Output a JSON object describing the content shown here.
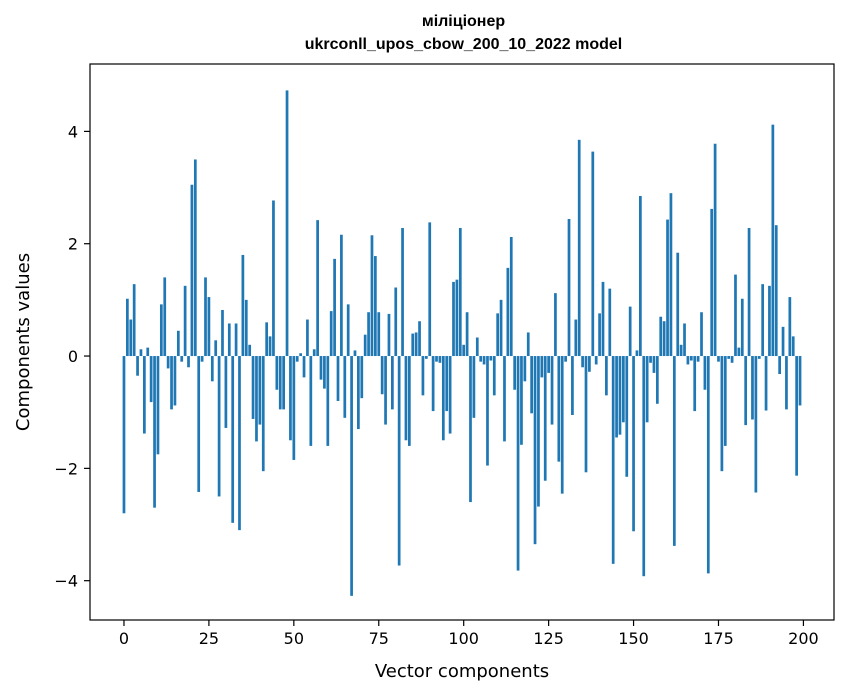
{
  "chart_data": {
    "type": "bar",
    "title": [
      "міліціонер",
      "ukrconll_upos_cbow_200_10_2022 model"
    ],
    "xlabel": "Vector components",
    "ylabel": "Components values",
    "xlim": [
      -10,
      209
    ],
    "ylim": [
      -4.7,
      5.2
    ],
    "xticks": [
      0,
      25,
      50,
      75,
      100,
      125,
      150,
      175,
      200
    ],
    "xtick_labels": [
      "0",
      "25",
      "50",
      "75",
      "100",
      "125",
      "150",
      "175",
      "200"
    ],
    "yticks": [
      -4,
      -2,
      0,
      2,
      4
    ],
    "ytick_labels": [
      "−4",
      "−2",
      "0",
      "2",
      "4"
    ],
    "grid": false,
    "bar_color": "#1f77b4",
    "x": [
      0,
      1,
      2,
      3,
      4,
      5,
      6,
      7,
      8,
      9,
      10,
      11,
      12,
      13,
      14,
      15,
      16,
      17,
      18,
      19,
      20,
      21,
      22,
      23,
      24,
      25,
      26,
      27,
      28,
      29,
      30,
      31,
      32,
      33,
      34,
      35,
      36,
      37,
      38,
      39,
      40,
      41,
      42,
      43,
      44,
      45,
      46,
      47,
      48,
      49,
      50,
      51,
      52,
      53,
      54,
      55,
      56,
      57,
      58,
      59,
      60,
      61,
      62,
      63,
      64,
      65,
      66,
      67,
      68,
      69,
      70,
      71,
      72,
      73,
      74,
      75,
      76,
      77,
      78,
      79,
      80,
      81,
      82,
      83,
      84,
      85,
      86,
      87,
      88,
      89,
      90,
      91,
      92,
      93,
      94,
      95,
      96,
      97,
      98,
      99,
      100,
      101,
      102,
      103,
      104,
      105,
      106,
      107,
      108,
      109,
      110,
      111,
      112,
      113,
      114,
      115,
      116,
      117,
      118,
      119,
      120,
      121,
      122,
      123,
      124,
      125,
      126,
      127,
      128,
      129,
      130,
      131,
      132,
      133,
      134,
      135,
      136,
      137,
      138,
      139,
      140,
      141,
      142,
      143,
      144,
      145,
      146,
      147,
      148,
      149,
      150,
      151,
      152,
      153,
      154,
      155,
      156,
      157,
      158,
      159,
      160,
      161,
      162,
      163,
      164,
      165,
      166,
      167,
      168,
      169,
      170,
      171,
      172,
      173,
      174,
      175,
      176,
      177,
      178,
      179,
      180,
      181,
      182,
      183,
      184,
      185,
      186,
      187,
      188,
      189,
      190,
      191,
      192,
      193,
      194,
      195,
      196,
      197,
      198,
      199
    ],
    "values": [
      -2.8,
      1.02,
      0.65,
      1.28,
      -0.35,
      0.12,
      -1.38,
      0.15,
      -0.82,
      -2.7,
      -1.75,
      0.92,
      1.4,
      -0.22,
      -0.95,
      -0.88,
      0.45,
      -0.1,
      1.25,
      -0.2,
      3.05,
      3.5,
      -2.42,
      -0.1,
      1.4,
      1.05,
      -0.45,
      0.28,
      -2.5,
      0.82,
      -1.28,
      0.58,
      -2.97,
      0.58,
      -3.1,
      1.8,
      1.0,
      0.2,
      -1.12,
      -1.52,
      -1.22,
      -2.05,
      0.6,
      0.35,
      2.77,
      -0.6,
      -0.95,
      -0.95,
      4.73,
      -1.5,
      -1.85,
      -0.1,
      0.05,
      -0.38,
      0.65,
      -1.6,
      0.12,
      2.42,
      -0.42,
      -0.58,
      -1.6,
      0.8,
      1.73,
      -0.8,
      2.16,
      -1.1,
      0.92,
      -4.27,
      0.1,
      -1.3,
      -0.75,
      0.38,
      0.78,
      2.15,
      1.78,
      0.78,
      -0.68,
      -1.22,
      0.75,
      -0.95,
      1.22,
      -3.73,
      2.28,
      -1.5,
      -1.6,
      0.4,
      0.42,
      0.62,
      -0.7,
      -0.05,
      2.38,
      -0.98,
      -0.1,
      -0.12,
      -1.5,
      -0.98,
      -1.38,
      1.32,
      1.36,
      2.28,
      0.2,
      0.78,
      -2.6,
      -1.1,
      0.33,
      -0.1,
      -0.15,
      -1.95,
      -0.08,
      -0.7,
      0.76,
      1.0,
      -1.52,
      1.57,
      2.12,
      -0.6,
      -3.82,
      -1.58,
      -0.45,
      0.42,
      -1.02,
      -3.35,
      -2.68,
      -0.38,
      -2.22,
      -0.3,
      -1.22,
      1.12,
      -1.88,
      -2.45,
      -0.1,
      2.44,
      -1.05,
      0.65,
      3.85,
      -0.2,
      -2.07,
      -0.28,
      3.64,
      -0.15,
      0.76,
      1.32,
      -0.7,
      1.2,
      -3.7,
      -1.45,
      -1.4,
      -1.18,
      -2.15,
      0.88,
      -3.12,
      0.1,
      2.85,
      -3.92,
      -1.18,
      -0.12,
      -0.3,
      -0.85,
      0.7,
      0.62,
      2.43,
      2.9,
      -3.38,
      1.84,
      0.2,
      0.58,
      -0.15,
      -0.08,
      -0.98,
      -0.1,
      0.78,
      -0.6,
      -3.87,
      2.62,
      3.78,
      -0.1,
      -2.05,
      -1.6,
      -0.05,
      -0.12,
      1.45,
      0.15,
      1.02,
      -1.23,
      2.28,
      -1.13,
      -2.43,
      -0.05,
      1.28,
      -0.97,
      1.25,
      4.12,
      2.33,
      -0.32,
      0.52,
      -0.95,
      1.05,
      0.35,
      -2.13,
      -0.88
    ]
  }
}
